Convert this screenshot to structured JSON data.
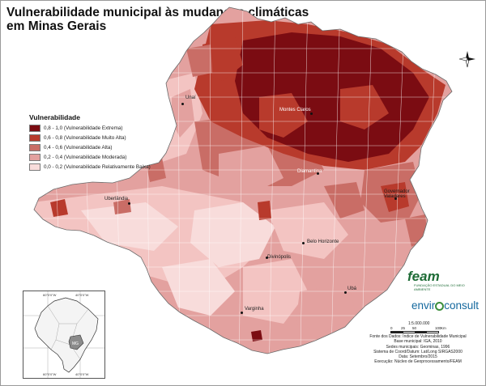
{
  "title": {
    "line1": "Vulnerabilidade municipal às mudanças climáticas",
    "line2": "em Minas Gerais"
  },
  "legend": {
    "title": "Vulnerabilidade",
    "classes": [
      {
        "label": "0,8 - 1,0 (Vulnerabilidade Extrema)",
        "color": "#7b0c12"
      },
      {
        "label": "0,6 - 0,8 (Vulnerabilidade Muito Alta)",
        "color": "#b83a2c"
      },
      {
        "label": "0,4 - 0,6 (Vulnerabilidade Alta)",
        "color": "#c96d66"
      },
      {
        "label": "0,2 - 0,4 (Vulnerabilidade Moderada)",
        "color": "#e3a19f"
      },
      {
        "label": "0,0 - 0,2 (Vulnerabilidade Relativamente Baixa)",
        "color": "#f8dcdb"
      }
    ]
  },
  "cities": [
    {
      "name": "Unaí"
    },
    {
      "name": "Montes Claros"
    },
    {
      "name": "Diamantina"
    },
    {
      "name": "Uberlândia"
    },
    {
      "name": "Governador Valadares"
    },
    {
      "name": "Belo Horizonte"
    },
    {
      "name": "Divinópolis"
    },
    {
      "name": "Ubá"
    },
    {
      "name": "Varginha"
    }
  ],
  "logos": {
    "feam": "feam",
    "feam_sub": "FUNDAÇÃO ESTADUAL DO MEIO AMBIENTE",
    "enviro_a": "envir",
    "enviro_b": "consult"
  },
  "scale": {
    "ratio": "1:5.000.000",
    "ticks": [
      "0",
      "25",
      "50",
      "100"
    ],
    "unit": "Km"
  },
  "credits": [
    "Fonte dos Dados: Índice de Vulnerabilidade Municipal",
    "Base municipal: IGA, 2010",
    "Sedes municipais: Geominas, 1996",
    "Sistema de Coord/Datum: Lat/Long SIRGAS2000",
    "Data: Setembro/2015",
    "Execução: Núcleo de Geoprocessamento/FEAM"
  ],
  "inset": {
    "label": "MG",
    "ticks": [
      "60°0'0\"W",
      "40°0'0\"W",
      "60°0'0\"W",
      "40°0'0\"W"
    ]
  },
  "icons": {
    "north": "north-arrow-icon",
    "compass": "compass-rose-icon"
  }
}
